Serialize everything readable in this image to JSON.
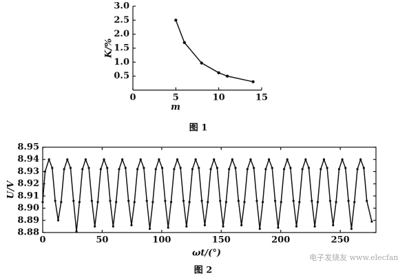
{
  "chart_data": [
    {
      "type": "line",
      "title": "图 1",
      "x_label": "m",
      "y_label": "K/%",
      "x": [
        5,
        6,
        8,
        10,
        11,
        14
      ],
      "series": [
        {
          "color": "#111111",
          "values": [
            2.5,
            1.7,
            0.97,
            0.62,
            0.5,
            0.3
          ]
        }
      ],
      "xlim": [
        0,
        15
      ],
      "xticks": [
        0,
        5,
        10,
        15
      ],
      "ylim": [
        0,
        3
      ],
      "yticks": [
        0.5,
        {
          "value": 1,
          "label": "1.0"
        },
        1.5,
        {
          "value": 2,
          "label": "2.0"
        },
        2.5,
        {
          "value": 3,
          "label": "3.0"
        }
      ],
      "frame": "axes",
      "markers": true
    },
    {
      "type": "line",
      "title": "图 2",
      "x_label": "ωt/(°)",
      "y_label": "U/V",
      "x": [
        0,
        2,
        5.3,
        8,
        10.5,
        13,
        15.5,
        18,
        20.7,
        23.4,
        25.9,
        28.4,
        30.9,
        33.4,
        36.1,
        38.8,
        41.3,
        43.8,
        46.3,
        48.8,
        51.5,
        54.2,
        56.7,
        59.2,
        61.7,
        64.2,
        66.9,
        69.6,
        72.1,
        74.6,
        77.1,
        79.6,
        82.3,
        85,
        87.5,
        90,
        92.5,
        95,
        97.7,
        100.4,
        102.9,
        105.4,
        107.9,
        110.4,
        113.1,
        115.8,
        118.3,
        120.8,
        123.3,
        125.8,
        128.5,
        131.2,
        133.7,
        136.2,
        138.7,
        141.2,
        143.9,
        146.6,
        149.1,
        151.6,
        154.1,
        156.6,
        159.3,
        162,
        164.5,
        167,
        169.5,
        172,
        174.7,
        177.4,
        179.9,
        182.4,
        184.9,
        187.4,
        190.1,
        192.8,
        195.3,
        197.8,
        200.3,
        202.8,
        205.5,
        208.2,
        210.7,
        213.2,
        215.7,
        218.2,
        220.9,
        223.6,
        226.1,
        228.6,
        231.1,
        233.6,
        236.3,
        239,
        241.5,
        244,
        246.5,
        249,
        251.7,
        254.4,
        256.9,
        259.4,
        261.9,
        264.4,
        267.1,
        269.8,
        272.3,
        276.5
      ],
      "series": [
        {
          "color": "#111111",
          "values": [
            8.905,
            8.93,
            8.94,
            8.933,
            8.906,
            8.89,
            8.905,
            8.932,
            8.94,
            8.933,
            8.906,
            8.881,
            8.905,
            8.932,
            8.94,
            8.933,
            8.906,
            8.885,
            8.905,
            8.932,
            8.94,
            8.933,
            8.906,
            8.885,
            8.905,
            8.932,
            8.94,
            8.933,
            8.906,
            8.886,
            8.905,
            8.932,
            8.94,
            8.933,
            8.906,
            8.883,
            8.905,
            8.932,
            8.94,
            8.933,
            8.906,
            8.884,
            8.905,
            8.932,
            8.94,
            8.933,
            8.906,
            8.885,
            8.905,
            8.932,
            8.94,
            8.933,
            8.906,
            8.886,
            8.905,
            8.932,
            8.94,
            8.933,
            8.906,
            8.885,
            8.905,
            8.932,
            8.94,
            8.933,
            8.906,
            8.886,
            8.905,
            8.932,
            8.94,
            8.933,
            8.906,
            8.883,
            8.905,
            8.932,
            8.94,
            8.933,
            8.906,
            8.884,
            8.905,
            8.932,
            8.94,
            8.933,
            8.906,
            8.885,
            8.905,
            8.932,
            8.94,
            8.933,
            8.906,
            8.885,
            8.905,
            8.932,
            8.94,
            8.933,
            8.906,
            8.886,
            8.905,
            8.932,
            8.94,
            8.933,
            8.906,
            8.883,
            8.905,
            8.932,
            8.94,
            8.933,
            8.906,
            8.889
          ]
        }
      ],
      "xlim": [
        0,
        280
      ],
      "xticks": [
        0,
        50,
        100,
        150,
        200,
        250
      ],
      "ylim": [
        8.88,
        8.95
      ],
      "yticks": [
        8.88,
        8.89,
        {
          "value": 8.9,
          "label": "8.90"
        },
        8.91,
        8.92,
        8.93,
        8.94,
        8.95
      ],
      "frame": "box",
      "markers": true
    }
  ],
  "watermark": "电子发烧友 www.elecfans.com"
}
